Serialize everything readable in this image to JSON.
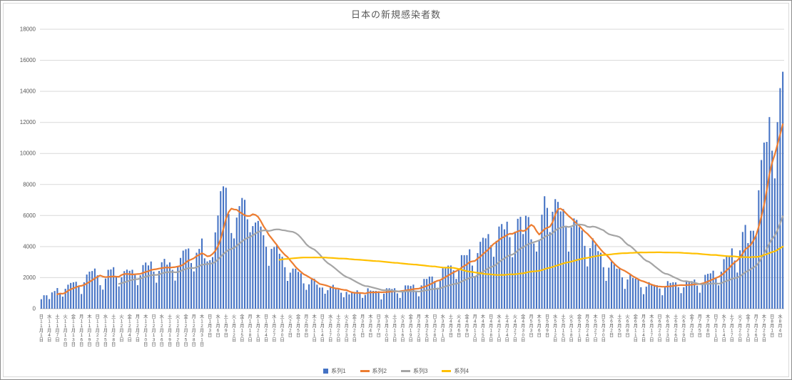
{
  "chart_data": {
    "type": "bar",
    "title": "日本の新規感染者数",
    "xlabel": "",
    "ylabel": "",
    "ylim": [
      0,
      18000
    ],
    "y_tick_step": 2000,
    "grid": true,
    "grid_color": "#d9d9d9",
    "axis_line_color": "#bfbfbf",
    "axis_text_color": "#595959",
    "legend_position": "bottom",
    "x_tick_interval": 3,
    "x_tick_labels": [
      "日11月1日",
      "水11月4日",
      "土11月7日",
      "火11月10日",
      "金11月13日",
      "月11月16日",
      "木11月19日",
      "日11月22日",
      "水11月25日",
      "土11月28日",
      "火12月1日",
      "金12月4日",
      "月12月7日",
      "木12月10日",
      "日12月13日",
      "水12月16日",
      "土12月19日",
      "火12月22日",
      "金12月25日",
      "月12月28日",
      "木12月31日",
      "日1月3日",
      "水1月6日",
      "土1月9日",
      "火1月12日",
      "金1月15日",
      "月1月18日",
      "木1月21日",
      "日1月24日",
      "水1月27日",
      "土1月30日",
      "火2月2日",
      "金2月5日",
      "月2月8日",
      "木2月11日",
      "日2月14日",
      "水2月17日",
      "土2月20日",
      "火2月23日",
      "金2月26日",
      "月3月1日",
      "木3月4日",
      "日3月7日",
      "水3月10日",
      "土3月13日",
      "火3月16日",
      "金3月19日",
      "月3月22日",
      "木3月25日",
      "日3月28日",
      "水3月31日",
      "土4月3日",
      "火4月6日",
      "金4月9日",
      "月4月12日",
      "木4月15日",
      "日4月18日",
      "水4月21日",
      "土4月24日",
      "火4月27日",
      "金4月30日",
      "月5月3日",
      "木5月6日",
      "日5月9日",
      "水5月12日",
      "土5月15日",
      "火5月18日",
      "金5月21日",
      "月5月24日",
      "木5月27日",
      "日5月30日",
      "水6月2日",
      "土6月5日",
      "火6月8日",
      "金6月11日",
      "月6月14日",
      "木6月17日",
      "日6月20日",
      "水6月23日",
      "土6月26日",
      "火6月29日",
      "金7月2日",
      "月7月5日",
      "木7月8日",
      "日7月11日",
      "水7月14日",
      "土7月17日",
      "火7月20日",
      "金7月23日",
      "月7月26日",
      "木7月29日",
      "日8月1日",
      "水8月4日"
    ],
    "series": [
      {
        "name": "系列1",
        "type": "bar",
        "color": "#4472C4",
        "values": [
          614,
          867,
          865,
          620,
          1050,
          1141,
          1331,
          963,
          780,
          1284,
          1547,
          1660,
          1704,
          1736,
          1441,
          948,
          1699,
          2201,
          2386,
          2427,
          2586,
          2153,
          1515,
          1229,
          1946,
          2504,
          2531,
          2674,
          2066,
          1438,
          2030,
          2420,
          2518,
          2442,
          2508,
          2174,
          1515,
          2152,
          2812,
          2973,
          2788,
          3041,
          2389,
          1675,
          2432,
          2994,
          3211,
          2837,
          2982,
          2501,
          1809,
          2688,
          3271,
          3742,
          3832,
          3881,
          2941,
          2403,
          3604,
          3852,
          4520,
          3246,
          3044,
          3127,
          3325,
          4915,
          6004,
          7570,
          7882,
          7790,
          6096,
          4875,
          4527,
          5870,
          6607,
          7133,
          7014,
          5759,
          4925,
          5321,
          5549,
          5654,
          5292,
          4731,
          3988,
          2764,
          3853,
          3971,
          4133,
          3539,
          3344,
          2673,
          1791,
          2324,
          2585,
          2577,
          2372,
          2279,
          1631,
          1216,
          1570,
          1887,
          1934,
          1552,
          1362,
          1364,
          965,
          1194,
          1448,
          1538,
          1301,
          1234,
          1032,
          739,
          1085,
          922,
          1076,
          1083,
          1184,
          999,
          698,
          888,
          1316,
          1173,
          1148,
          1144,
          1121,
          599,
          972,
          1317,
          1316,
          1271,
          1320,
          988,
          695,
          1133,
          1500,
          1499,
          1463,
          1549,
          1121,
          800,
          1500,
          1917,
          1918,
          2070,
          2072,
          1785,
          1348,
          1790,
          2609,
          2597,
          2778,
          2783,
          2472,
          1918,
          2472,
          3451,
          3448,
          3451,
          3827,
          2777,
          2097,
          3584,
          4309,
          4571,
          4532,
          4806,
          4093,
          3347,
          4370,
          5292,
          5452,
          5113,
          5605,
          4605,
          3318,
          4965,
          5792,
          5918,
          4808,
          5986,
          5905,
          4470,
          4199,
          3680,
          4365,
          6056,
          7244,
          6493,
          4936,
          6243,
          7057,
          6880,
          6267,
          6421,
          5250,
          3680,
          5230,
          5815,
          5721,
          5252,
          5040,
          4048,
          2724,
          3901,
          4536,
          4141,
          3708,
          3604,
          2674,
          1794,
          2644,
          3035,
          2852,
          2577,
          2645,
          2020,
          1277,
          1884,
          2242,
          1980,
          1937,
          1937,
          1385,
          936,
          1419,
          1709,
          1554,
          1544,
          1515,
          1304,
          868,
          1437,
          1778,
          1661,
          1704,
          1696,
          1387,
          1001,
          1382,
          1817,
          1754,
          1776,
          1879,
          1485,
          1029,
          1670,
          2180,
          2246,
          2277,
          2449,
          2015,
          1506,
          2386,
          3194,
          3418,
          3423,
          3886,
          3103,
          2329,
          3758,
          4943,
          5397,
          4225,
          5020,
          5020,
          4692,
          7629,
          9576,
          10699,
          10743,
          12342,
          10177,
          8393,
          12017,
          14207,
          15263
        ]
      },
      {
        "name": "系列2",
        "type": "line",
        "color": "#ED7D31",
        "derived": "moving_average",
        "window": 7
      },
      {
        "name": "系列3",
        "type": "line",
        "color": "#A5A5A5",
        "derived": "moving_average",
        "window": 30
      },
      {
        "name": "系列4",
        "type": "line",
        "color": "#FFC000",
        "derived": "moving_average",
        "window": 90
      }
    ]
  }
}
